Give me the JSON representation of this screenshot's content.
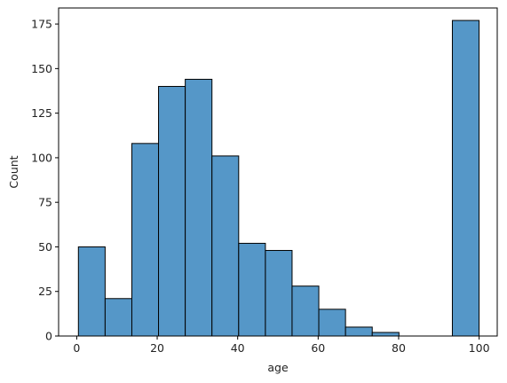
{
  "chart_data": {
    "type": "bar",
    "title": "",
    "xlabel": "age",
    "ylabel": "Count",
    "xlim": [
      -4.5,
      104.5
    ],
    "ylim": [
      0,
      184
    ],
    "xticks": [
      0,
      20,
      40,
      60,
      80,
      100
    ],
    "yticks": [
      0,
      25,
      50,
      75,
      100,
      125,
      150,
      175
    ],
    "bin_edges": [
      0.42,
      7.06,
      13.7,
      20.33,
      26.97,
      33.61,
      40.25,
      46.89,
      53.52,
      60.16,
      66.8,
      73.44,
      80.08,
      86.71,
      93.35,
      99.99
    ],
    "values": [
      50,
      21,
      108,
      140,
      144,
      101,
      52,
      48,
      28,
      15,
      5,
      2,
      0,
      0,
      177
    ],
    "bar_color": "#5597c8",
    "edge_color": "#000000",
    "grid": false
  }
}
